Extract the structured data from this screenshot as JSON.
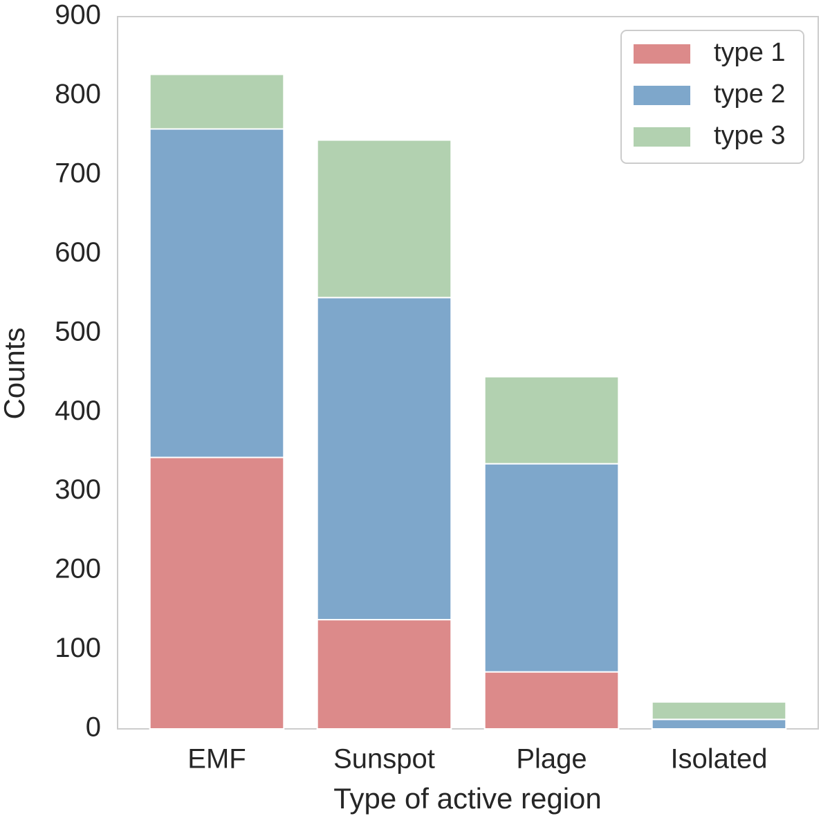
{
  "chart_data": {
    "type": "stacked_bar",
    "x_label": "Type of active region",
    "y_label": "Counts",
    "categories": [
      "EMF",
      "Sunspot",
      "Plage",
      "Isolated"
    ],
    "series": [
      {
        "name": "type 1",
        "color": "#dc8a8a",
        "values": [
          343,
          138,
          72,
          0
        ]
      },
      {
        "name": "type 2",
        "color": "#7ea7cb",
        "values": [
          415,
          407,
          263,
          12
        ]
      },
      {
        "name": "type 3",
        "color": "#b2d1b0",
        "values": [
          69,
          199,
          110,
          22
        ]
      }
    ],
    "ylim": [
      0,
      900
    ],
    "yticks": [
      0,
      100,
      200,
      300,
      400,
      500,
      600,
      700,
      800,
      900
    ],
    "legend": "upper right",
    "grid": false
  }
}
